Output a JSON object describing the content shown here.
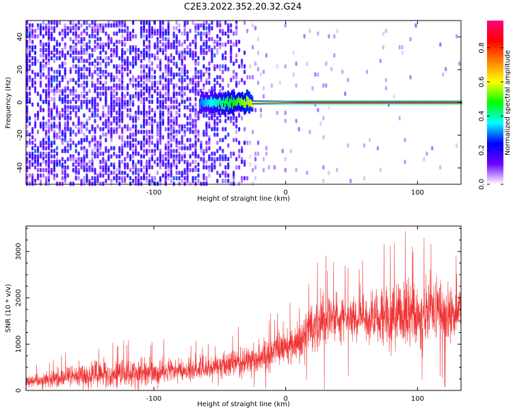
{
  "figure_title": "C2E3.2022.352.20.32.G24",
  "chart_data": [
    {
      "type": "heatmap",
      "title": "",
      "xlabel": "Height of straight line (km)",
      "ylabel": "Frequency (Hz)",
      "xlim": [
        -197,
        133
      ],
      "ylim": [
        -50,
        50
      ],
      "xticks": [
        -100,
        0,
        100
      ],
      "yticks": [
        -40,
        -20,
        0,
        20,
        40
      ],
      "colorbar": {
        "label": "Normalized spectral amplitude",
        "range": [
          0,
          0.96
        ],
        "ticks": [
          0.0,
          0.2,
          0.4,
          0.6,
          0.8
        ],
        "colors": [
          "#ffffff",
          "#6a00ff",
          "#0000ff",
          "#00ffff",
          "#00ff00",
          "#ffff00",
          "#ff8000",
          "#ff0000",
          "#ff0080"
        ]
      },
      "ridge": {
        "frequency": 0,
        "start_height": -65,
        "end_height": 133,
        "amplitude_start": 0.3,
        "amplitude_end": 0.95
      },
      "noise_region": {
        "x": [
          -197,
          -30
        ],
        "amplitude": 0.2
      }
    },
    {
      "type": "line",
      "title": "",
      "xlabel": "Height of straight line (km)",
      "ylabel": "SNR (10 * v/v)",
      "xlim": [
        -197,
        133
      ],
      "ylim": [
        0,
        3550
      ],
      "xticks": [
        -100,
        0,
        100
      ],
      "yticks": [
        0,
        1000,
        2000,
        3000
      ],
      "color": "#f03232",
      "trend_x": [
        -197,
        -150,
        -100,
        -50,
        -40,
        -20,
        0,
        10,
        20,
        40,
        60,
        90,
        133
      ],
      "trend_y_mean": [
        200,
        330,
        380,
        520,
        580,
        700,
        950,
        1050,
        1400,
        1600,
        1550,
        1650,
        1700
      ],
      "trend_y_peak": [
        500,
        1000,
        1100,
        1050,
        1300,
        1500,
        1900,
        2000,
        2750,
        2800,
        2700,
        3550,
        3200
      ]
    }
  ]
}
